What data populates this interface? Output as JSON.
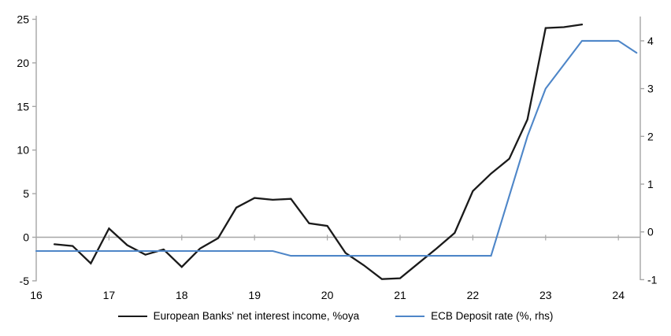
{
  "chart_data": {
    "type": "line",
    "title": "",
    "x_tick_labels": [
      "16",
      "17",
      "18",
      "19",
      "20",
      "21",
      "22",
      "23",
      "24"
    ],
    "x_range": [
      2016.0,
      2024.3
    ],
    "left_axis": {
      "side": "left",
      "tick_values": [
        25,
        20,
        15,
        10,
        5,
        0,
        -5
      ],
      "range": [
        -5,
        25
      ],
      "zero_line": true
    },
    "right_axis": {
      "side": "right",
      "tick_values": [
        4,
        3,
        2,
        1,
        0,
        -1
      ],
      "range": [
        -1,
        4
      ]
    },
    "grid": "off",
    "legend_position": "bottom",
    "series": [
      {
        "name": "European Banks' net interest income, %oya",
        "axis": "left",
        "color": "#1a1a1a",
        "x": [
          2016.25,
          2016.5,
          2016.75,
          2017.0,
          2017.25,
          2017.5,
          2017.75,
          2018.0,
          2018.25,
          2018.5,
          2018.75,
          2019.0,
          2019.25,
          2019.5,
          2019.75,
          2020.0,
          2020.25,
          2020.5,
          2020.75,
          2021.0,
          2021.25,
          2021.5,
          2021.75,
          2022.0,
          2022.25,
          2022.5,
          2022.75,
          2023.0,
          2023.25,
          2023.5
        ],
        "values": [
          -0.8,
          -1.0,
          -3.0,
          1.0,
          -0.9,
          -2.0,
          -1.4,
          -3.4,
          -1.3,
          -0.1,
          3.4,
          4.5,
          4.3,
          4.4,
          1.6,
          1.3,
          -1.8,
          -3.2,
          -4.8,
          -4.7,
          -3.0,
          -1.3,
          0.5,
          5.3,
          7.3,
          9.0,
          13.5,
          24.0,
          24.1,
          24.4
        ]
      },
      {
        "name": "ECB Deposit rate (%, rhs)",
        "axis": "right",
        "color": "#4e86c8",
        "x": [
          2016.0,
          2016.25,
          2016.5,
          2016.75,
          2017.0,
          2017.25,
          2017.5,
          2017.75,
          2018.0,
          2018.25,
          2018.5,
          2018.75,
          2019.0,
          2019.25,
          2019.5,
          2019.75,
          2020.0,
          2020.25,
          2020.5,
          2020.75,
          2021.0,
          2021.25,
          2021.5,
          2021.75,
          2022.0,
          2022.25,
          2022.5,
          2022.75,
          2023.0,
          2023.25,
          2023.5,
          2023.75,
          2024.0,
          2024.25
        ],
        "values": [
          -0.4,
          -0.4,
          -0.4,
          -0.4,
          -0.4,
          -0.4,
          -0.4,
          -0.4,
          -0.4,
          -0.4,
          -0.4,
          -0.4,
          -0.4,
          -0.4,
          -0.5,
          -0.5,
          -0.5,
          -0.5,
          -0.5,
          -0.5,
          -0.5,
          -0.5,
          -0.5,
          -0.5,
          -0.5,
          -0.5,
          0.75,
          2.0,
          3.0,
          3.5,
          4.0,
          4.0,
          4.0,
          3.75
        ]
      }
    ]
  },
  "colors": {
    "axis": "#a6a6a6",
    "text": "#000000",
    "background": "#ffffff"
  }
}
